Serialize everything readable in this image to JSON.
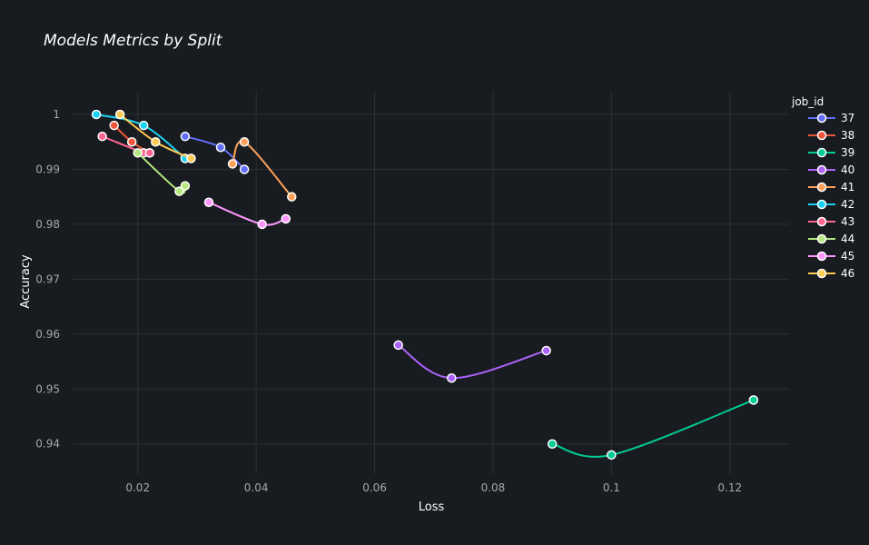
{
  "chart_data": {
    "type": "scatter",
    "title": "Models Metrics by Split",
    "xlabel": "Loss",
    "ylabel": "Accuracy",
    "xlim": [
      0.009,
      0.13
    ],
    "ylim": [
      0.9345,
      1.0043
    ],
    "xticks": [
      0.02,
      0.04,
      0.06,
      0.08,
      0.1,
      0.12
    ],
    "xtick_labels": [
      "0.02",
      "0.04",
      "0.06",
      "0.08",
      "0.1",
      "0.12"
    ],
    "yticks": [
      0.94,
      0.95,
      0.96,
      0.97,
      0.98,
      0.99,
      1.0
    ],
    "ytick_labels": [
      "0.94",
      "0.95",
      "0.96",
      "0.97",
      "0.98",
      "0.99",
      "1"
    ],
    "grid": true,
    "legend_title": "job_id",
    "legend_position": "right",
    "mode": "lines+markers (spline)",
    "series": [
      {
        "name": "37",
        "color": "#636efa",
        "x": [
          0.028,
          0.034,
          0.038
        ],
        "y": [
          0.996,
          0.994,
          0.99
        ]
      },
      {
        "name": "38",
        "color": "#ef553b",
        "x": [
          0.016,
          0.019,
          0.022
        ],
        "y": [
          0.998,
          0.995,
          0.993
        ]
      },
      {
        "name": "39",
        "color": "#00cc96",
        "x": [
          0.09,
          0.1,
          0.124
        ],
        "y": [
          0.94,
          0.938,
          0.948
        ]
      },
      {
        "name": "40",
        "color": "#ab63fa",
        "x": [
          0.064,
          0.073,
          0.089
        ],
        "y": [
          0.958,
          0.952,
          0.957
        ]
      },
      {
        "name": "41",
        "color": "#ffa15a",
        "x": [
          0.036,
          0.038,
          0.046
        ],
        "y": [
          0.991,
          0.995,
          0.985
        ]
      },
      {
        "name": "42",
        "color": "#19d3f3",
        "x": [
          0.013,
          0.021,
          0.028
        ],
        "y": [
          1.0,
          0.998,
          0.992
        ]
      },
      {
        "name": "43",
        "color": "#ff6692",
        "x": [
          0.014,
          0.021,
          0.022
        ],
        "y": [
          0.996,
          0.993,
          0.993
        ]
      },
      {
        "name": "44",
        "color": "#b6e880",
        "x": [
          0.02,
          0.027,
          0.028
        ],
        "y": [
          0.993,
          0.986,
          0.987
        ]
      },
      {
        "name": "45",
        "color": "#ff97ff",
        "x": [
          0.032,
          0.041,
          0.045
        ],
        "y": [
          0.984,
          0.98,
          0.981
        ]
      },
      {
        "name": "46",
        "color": "#fecb52",
        "x": [
          0.017,
          0.023,
          0.029
        ],
        "y": [
          1.0,
          0.995,
          0.992
        ]
      }
    ]
  }
}
